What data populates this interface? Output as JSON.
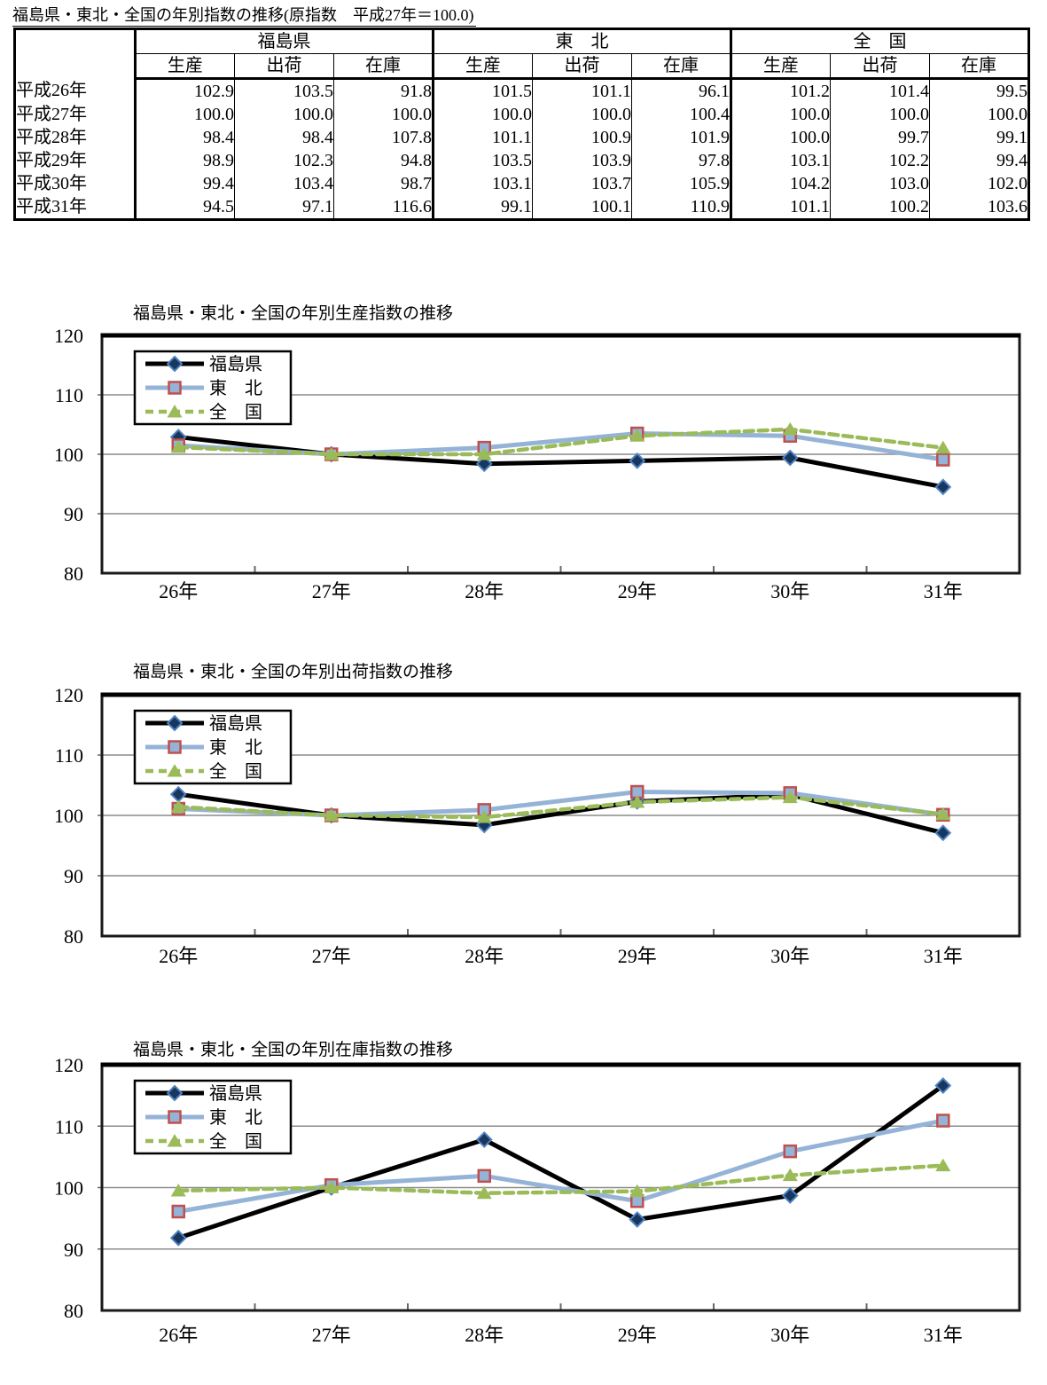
{
  "table": {
    "title": "福島県・東北・全国の年別指数の推移(原指数　平成27年＝100.0)",
    "region_groups": [
      "福島県",
      "東　北",
      "全　国"
    ],
    "measure_columns": [
      "生産",
      "出荷",
      "在庫"
    ],
    "row_labels": [
      "平成26年",
      "平成27年",
      "平成28年",
      "平成29年",
      "平成30年",
      "平成31年"
    ],
    "rows": [
      [
        "102.9",
        "103.5",
        "91.8",
        "101.5",
        "101.1",
        "96.1",
        "101.2",
        "101.4",
        "99.5"
      ],
      [
        "100.0",
        "100.0",
        "100.0",
        "100.0",
        "100.0",
        "100.4",
        "100.0",
        "100.0",
        "100.0"
      ],
      [
        "98.4",
        "98.4",
        "107.8",
        "101.1",
        "100.9",
        "101.9",
        "100.0",
        "99.7",
        "99.1"
      ],
      [
        "98.9",
        "102.3",
        "94.8",
        "103.5",
        "103.9",
        "97.8",
        "103.1",
        "102.2",
        "99.4"
      ],
      [
        "99.4",
        "103.4",
        "98.7",
        "103.1",
        "103.7",
        "105.9",
        "104.2",
        "103.0",
        "102.0"
      ],
      [
        "94.5",
        "97.1",
        "116.6",
        "99.1",
        "100.1",
        "110.9",
        "101.1",
        "100.2",
        "103.6"
      ]
    ]
  },
  "colors": {
    "grid": "#8c8c8c",
    "plot_border": "#1a1a1a",
    "tick": "#666666",
    "legend_border": "#000000",
    "fukushima_line": "#000000",
    "fukushima_marker_fill": "#17375e",
    "fukushima_marker_stroke": "#4f81bd",
    "tohoku_line": "#95b3d7",
    "tohoku_marker_fill": "#95b3d7",
    "tohoku_marker_stroke": "#c0504d",
    "zenkoku_line": "#9bbb59"
  },
  "chart_data": [
    {
      "type": "line",
      "title": "福島県・東北・全国の年別生産指数の推移",
      "categories": [
        "26年",
        "27年",
        "28年",
        "29年",
        "30年",
        "31年"
      ],
      "ylim": [
        80,
        120
      ],
      "yticks": [
        80,
        90,
        100,
        110,
        120
      ],
      "grid": "horizontal",
      "legend_position": "inside-top-left",
      "series": [
        {
          "name": "福島県",
          "values": [
            102.9,
            100.0,
            98.4,
            98.9,
            99.4,
            94.5
          ],
          "line_color": "#000000",
          "line_style": "solid",
          "marker": "diamond",
          "marker_fill": "#17375e",
          "marker_stroke": "#4f81bd"
        },
        {
          "name": "東　北",
          "values": [
            101.5,
            100.0,
            101.1,
            103.5,
            103.1,
            99.1
          ],
          "line_color": "#95b3d7",
          "line_style": "solid",
          "marker": "square",
          "marker_fill": "#95b3d7",
          "marker_stroke": "#c0504d"
        },
        {
          "name": "全　国",
          "values": [
            101.2,
            100.0,
            100.0,
            103.1,
            104.2,
            101.1
          ],
          "line_color": "#9bbb59",
          "line_style": "dashed",
          "marker": "triangle",
          "marker_fill": "#9bbb59",
          "marker_stroke": "#9bbb59"
        }
      ]
    },
    {
      "type": "line",
      "title": "福島県・東北・全国の年別出荷指数の推移",
      "categories": [
        "26年",
        "27年",
        "28年",
        "29年",
        "30年",
        "31年"
      ],
      "ylim": [
        80,
        120
      ],
      "yticks": [
        80,
        90,
        100,
        110,
        120
      ],
      "grid": "horizontal",
      "legend_position": "inside-top-left",
      "series": [
        {
          "name": "福島県",
          "values": [
            103.5,
            100.0,
            98.4,
            102.3,
            103.4,
            97.1
          ],
          "line_color": "#000000",
          "line_style": "solid",
          "marker": "diamond",
          "marker_fill": "#17375e",
          "marker_stroke": "#4f81bd"
        },
        {
          "name": "東　北",
          "values": [
            101.1,
            100.0,
            100.9,
            103.9,
            103.7,
            100.1
          ],
          "line_color": "#95b3d7",
          "line_style": "solid",
          "marker": "square",
          "marker_fill": "#95b3d7",
          "marker_stroke": "#c0504d"
        },
        {
          "name": "全　国",
          "values": [
            101.4,
            100.0,
            99.7,
            102.2,
            103.0,
            100.2
          ],
          "line_color": "#9bbb59",
          "line_style": "dashed",
          "marker": "triangle",
          "marker_fill": "#9bbb59",
          "marker_stroke": "#9bbb59"
        }
      ]
    },
    {
      "type": "line",
      "title": "福島県・東北・全国の年別在庫指数の推移",
      "categories": [
        "26年",
        "27年",
        "28年",
        "29年",
        "30年",
        "31年"
      ],
      "ylim": [
        80,
        120
      ],
      "yticks": [
        80,
        90,
        100,
        110,
        120
      ],
      "grid": "horizontal",
      "legend_position": "inside-top-left",
      "series": [
        {
          "name": "福島県",
          "values": [
            91.8,
            100.0,
            107.8,
            94.8,
            98.7,
            116.6
          ],
          "line_color": "#000000",
          "line_style": "solid",
          "marker": "diamond",
          "marker_fill": "#17375e",
          "marker_stroke": "#4f81bd"
        },
        {
          "name": "東　北",
          "values": [
            96.1,
            100.4,
            101.9,
            97.8,
            105.9,
            110.9
          ],
          "line_color": "#95b3d7",
          "line_style": "solid",
          "marker": "square",
          "marker_fill": "#95b3d7",
          "marker_stroke": "#c0504d"
        },
        {
          "name": "全　国",
          "values": [
            99.5,
            100.0,
            99.1,
            99.4,
            102.0,
            103.6
          ],
          "line_color": "#9bbb59",
          "line_style": "dashed",
          "marker": "triangle",
          "marker_fill": "#9bbb59",
          "marker_stroke": "#9bbb59"
        }
      ]
    }
  ]
}
